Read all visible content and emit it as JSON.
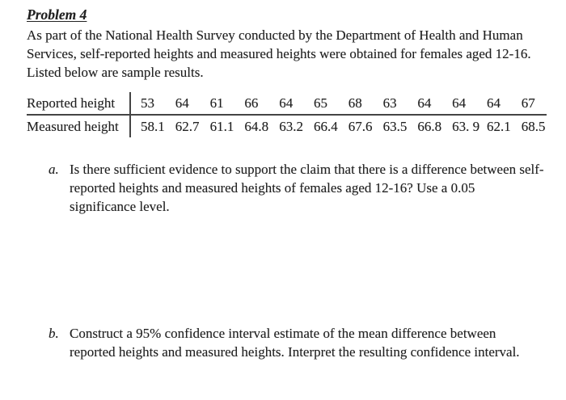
{
  "colors": {
    "background": "#ffffff",
    "text": "#212121",
    "table_rule": "#444444"
  },
  "title": "Problem 4",
  "intro": {
    "lines": [
      "As part of the National Health Survey conducted by the Department of Health and Human",
      "Services, self-reported heights and measured heights were obtained for females aged 12-16.",
      "Listed below are sample results."
    ]
  },
  "table": {
    "rows": [
      {
        "label": "Reported height",
        "values": [
          "53",
          "64",
          "61",
          "66",
          "64",
          "65",
          "68",
          "63",
          "64",
          "64",
          "64",
          "67"
        ]
      },
      {
        "label": "Measured height",
        "values": [
          "58.1",
          "62.7",
          "61.1",
          "64.8",
          "63.2",
          "66.4",
          "67.6",
          "63.5",
          "66.8",
          "63. 9",
          "62.1",
          "68.5"
        ]
      }
    ]
  },
  "questions": [
    {
      "marker": "a.",
      "lines": [
        "Is there sufficient evidence to support the claim that there is a difference between self-",
        "reported heights and measured heights of females aged 12-16? Use a 0.05",
        "significance level."
      ]
    },
    {
      "marker": "b.",
      "lines": [
        "Construct a 95% confidence interval estimate of the mean difference between",
        "reported heights and measured heights. Interpret the resulting confidence interval."
      ]
    }
  ]
}
